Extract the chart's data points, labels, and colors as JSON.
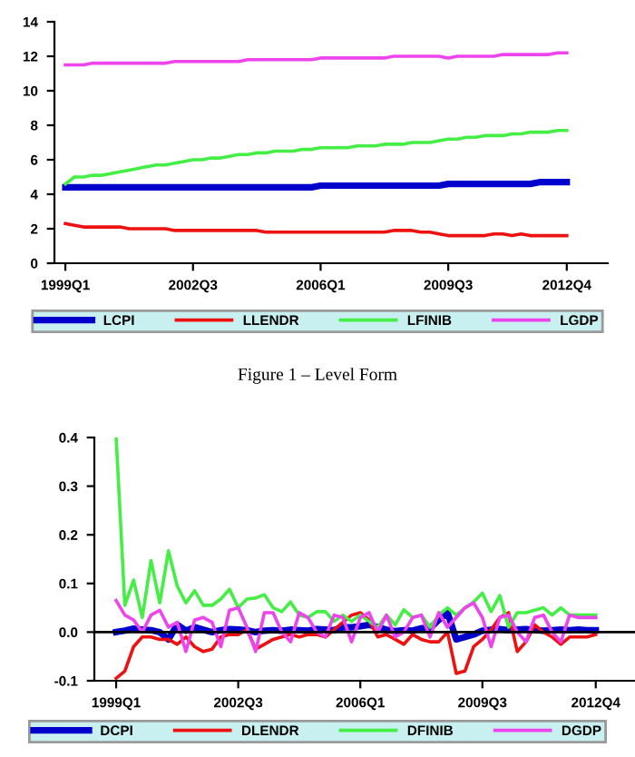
{
  "chart_data": [
    {
      "type": "line",
      "annotations": [
        "Figure 1 – Level Form"
      ],
      "categories": [
        "1999Q1",
        null,
        null,
        null,
        null,
        null,
        null,
        null,
        null,
        null,
        null,
        null,
        null,
        null,
        "2002Q3",
        null,
        null,
        null,
        null,
        null,
        null,
        null,
        null,
        null,
        null,
        null,
        null,
        null,
        "2006Q1",
        null,
        null,
        null,
        null,
        null,
        null,
        null,
        null,
        null,
        null,
        null,
        null,
        null,
        "2009Q3",
        null,
        null,
        null,
        null,
        null,
        null,
        null,
        null,
        null,
        null,
        null,
        null,
        "2012Q4"
      ],
      "series": [
        {
          "name": "LCPI",
          "color": "#0000cc",
          "values": [
            4.4,
            4.4,
            4.4,
            4.4,
            4.4,
            4.4,
            4.4,
            4.4,
            4.4,
            4.4,
            4.4,
            4.4,
            4.4,
            4.4,
            4.4,
            4.4,
            4.4,
            4.4,
            4.4,
            4.4,
            4.4,
            4.4,
            4.4,
            4.4,
            4.4,
            4.4,
            4.4,
            4.4,
            4.5,
            4.5,
            4.5,
            4.5,
            4.5,
            4.5,
            4.5,
            4.5,
            4.5,
            4.5,
            4.5,
            4.5,
            4.5,
            4.5,
            4.6,
            4.6,
            4.6,
            4.6,
            4.6,
            4.6,
            4.6,
            4.6,
            4.6,
            4.6,
            4.7,
            4.7,
            4.7,
            4.7
          ]
        },
        {
          "name": "LLENDR",
          "color": "#ee1111",
          "values": [
            2.3,
            2.2,
            2.1,
            2.1,
            2.1,
            2.1,
            2.1,
            2.0,
            2.0,
            2.0,
            2.0,
            2.0,
            1.9,
            1.9,
            1.9,
            1.9,
            1.9,
            1.9,
            1.9,
            1.9,
            1.9,
            1.9,
            1.8,
            1.8,
            1.8,
            1.8,
            1.8,
            1.8,
            1.8,
            1.8,
            1.8,
            1.8,
            1.8,
            1.8,
            1.8,
            1.8,
            1.9,
            1.9,
            1.9,
            1.8,
            1.8,
            1.7,
            1.6,
            1.6,
            1.6,
            1.6,
            1.6,
            1.7,
            1.7,
            1.6,
            1.7,
            1.6,
            1.6,
            1.6,
            1.6,
            1.6
          ]
        },
        {
          "name": "LFINIB",
          "color": "#44ee44",
          "values": [
            4.6,
            5.0,
            5.0,
            5.1,
            5.1,
            5.2,
            5.3,
            5.4,
            5.5,
            5.6,
            5.7,
            5.7,
            5.8,
            5.9,
            6.0,
            6.0,
            6.1,
            6.1,
            6.2,
            6.3,
            6.3,
            6.4,
            6.4,
            6.5,
            6.5,
            6.5,
            6.6,
            6.6,
            6.7,
            6.7,
            6.7,
            6.7,
            6.8,
            6.8,
            6.8,
            6.9,
            6.9,
            6.9,
            7.0,
            7.0,
            7.0,
            7.1,
            7.2,
            7.2,
            7.3,
            7.3,
            7.4,
            7.4,
            7.4,
            7.5,
            7.5,
            7.6,
            7.6,
            7.6,
            7.7,
            7.7
          ]
        },
        {
          "name": "LGDP",
          "color": "#ee44ee",
          "values": [
            11.5,
            11.5,
            11.5,
            11.6,
            11.6,
            11.6,
            11.6,
            11.6,
            11.6,
            11.6,
            11.6,
            11.6,
            11.7,
            11.7,
            11.7,
            11.7,
            11.7,
            11.7,
            11.7,
            11.7,
            11.8,
            11.8,
            11.8,
            11.8,
            11.8,
            11.8,
            11.8,
            11.8,
            11.9,
            11.9,
            11.9,
            11.9,
            11.9,
            11.9,
            11.9,
            11.9,
            12.0,
            12.0,
            12.0,
            12.0,
            12.0,
            12.0,
            11.9,
            12.0,
            12.0,
            12.0,
            12.0,
            12.0,
            12.1,
            12.1,
            12.1,
            12.1,
            12.1,
            12.1,
            12.2,
            12.2
          ]
        }
      ],
      "ylim": [
        0,
        14
      ],
      "yticks": [
        0,
        2,
        4,
        6,
        8,
        10,
        12,
        14
      ],
      "legend": "bottom",
      "grid": false
    },
    {
      "type": "line",
      "categories": [
        "1999Q1",
        null,
        null,
        null,
        null,
        null,
        null,
        null,
        null,
        null,
        null,
        null,
        null,
        null,
        "2002Q3",
        null,
        null,
        null,
        null,
        null,
        null,
        null,
        null,
        null,
        null,
        null,
        null,
        null,
        "2006Q1",
        null,
        null,
        null,
        null,
        null,
        null,
        null,
        null,
        null,
        null,
        null,
        null,
        null,
        "2009Q3",
        null,
        null,
        null,
        null,
        null,
        null,
        null,
        null,
        null,
        null,
        null,
        null,
        "2012Q4"
      ],
      "series": [
        {
          "name": "DCPI",
          "color": "#0000cc",
          "values": [
            0.0,
            0.003,
            0.007,
            0.005,
            0.004,
            0.0,
            -0.015,
            0.015,
            0.003,
            0.01,
            0.005,
            0.0,
            0.004,
            0.006,
            0.005,
            0.004,
            0.0,
            0.003,
            0.004,
            0.003,
            0.005,
            0.004,
            0.003,
            0.006,
            0.005,
            0.004,
            0.01,
            0.01,
            0.012,
            0.015,
            0.01,
            0.005,
            0.002,
            0.004,
            0.003,
            0.008,
            0.008,
            0.025,
            0.04,
            -0.015,
            -0.01,
            -0.005,
            0.003,
            0.005,
            0.006,
            0.004,
            0.005,
            0.006,
            0.004,
            0.003,
            0.004,
            0.005,
            0.004,
            0.005,
            0.004,
            0.004
          ]
        },
        {
          "name": "DLENDR",
          "color": "#ee1111",
          "values": [
            -0.095,
            -0.08,
            -0.03,
            -0.01,
            -0.01,
            -0.015,
            -0.015,
            -0.025,
            -0.01,
            -0.03,
            -0.04,
            -0.035,
            -0.01,
            -0.005,
            -0.005,
            0.005,
            -0.035,
            -0.025,
            -0.015,
            -0.01,
            -0.005,
            -0.01,
            -0.005,
            -0.005,
            -0.01,
            0.005,
            0.02,
            0.035,
            0.04,
            0.025,
            -0.01,
            -0.005,
            -0.015,
            -0.025,
            -0.005,
            -0.015,
            -0.02,
            -0.02,
            0.0,
            -0.085,
            -0.08,
            -0.03,
            -0.015,
            0.005,
            0.03,
            0.04,
            -0.04,
            -0.02,
            0.015,
            0.0,
            -0.01,
            -0.025,
            -0.01,
            -0.01,
            -0.01,
            -0.005
          ]
        },
        {
          "name": "DFINIB",
          "color": "#44ee44",
          "values": [
            0.4,
            0.055,
            0.107,
            0.03,
            0.147,
            0.06,
            0.167,
            0.095,
            0.06,
            0.085,
            0.055,
            0.055,
            0.068,
            0.088,
            0.05,
            0.068,
            0.07,
            0.077,
            0.05,
            0.042,
            0.062,
            0.035,
            0.03,
            0.042,
            0.042,
            0.022,
            0.035,
            0.022,
            0.035,
            0.022,
            0.01,
            0.035,
            0.015,
            0.046,
            0.03,
            0.035,
            0.01,
            0.035,
            0.05,
            0.035,
            0.05,
            0.062,
            0.08,
            0.042,
            0.075,
            0.01,
            0.04,
            0.04,
            0.045,
            0.05,
            0.035,
            0.05,
            0.035,
            0.035,
            0.035,
            0.035
          ]
        },
        {
          "name": "DGDP",
          "color": "#ee44ee",
          "values": [
            0.065,
            0.035,
            0.025,
            0.0,
            0.035,
            0.045,
            0.01,
            0.02,
            -0.04,
            0.025,
            0.03,
            0.02,
            -0.03,
            0.045,
            0.05,
            0.01,
            -0.04,
            0.04,
            0.04,
            0.0,
            -0.02,
            0.04,
            0.03,
            0.0,
            -0.01,
            0.035,
            0.03,
            -0.02,
            0.03,
            0.04,
            0.0,
            0.035,
            -0.01,
            0.0,
            0.03,
            0.035,
            -0.01,
            0.04,
            0.01,
            0.03,
            0.05,
            0.06,
            0.03,
            -0.03,
            0.03,
            0.035,
            0.0,
            -0.02,
            0.03,
            0.035,
            0.0,
            -0.02,
            0.035,
            0.03,
            0.03,
            0.03
          ]
        }
      ],
      "ylim": [
        -0.1,
        0.4
      ],
      "yticks": [
        {
          "value": -0.1,
          "label": "-0.1"
        },
        {
          "value": 0.0,
          "label": "0.0"
        },
        0.1,
        0.2,
        0.3,
        0.4
      ],
      "ref_lines": [
        {
          "axis": "y",
          "value": 0,
          "color": "#000000"
        }
      ],
      "legend": "bottom",
      "grid": false
    }
  ]
}
